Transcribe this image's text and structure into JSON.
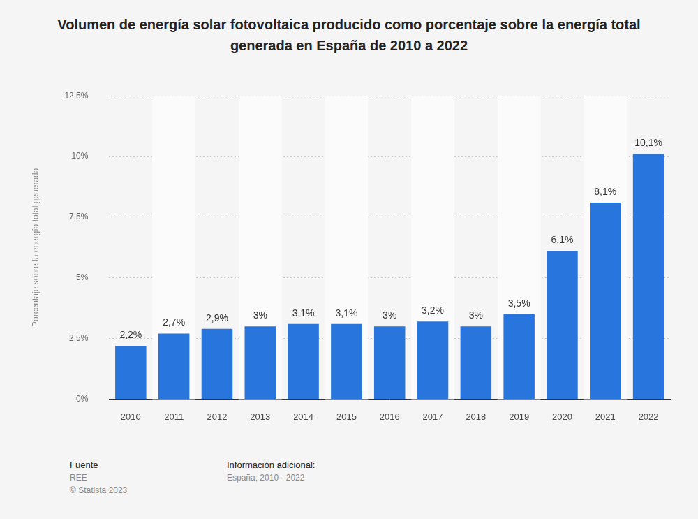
{
  "chart_data": {
    "type": "bar",
    "title": "Volumen de energía solar fotovoltaica producido como porcentaje sobre la energía total generada en España de 2010 a 2022",
    "y_label": "Porcentaje sobre la energía total generada",
    "categories": [
      "2010",
      "2011",
      "2012",
      "2013",
      "2014",
      "2015",
      "2016",
      "2017",
      "2018",
      "2019",
      "2020",
      "2021",
      "2022"
    ],
    "values": [
      2.2,
      2.7,
      2.9,
      3,
      3.1,
      3.1,
      3,
      3.2,
      3,
      3.5,
      6.1,
      8.1,
      10.1
    ],
    "value_labels": [
      "2,2%",
      "2,7%",
      "2,9%",
      "3%",
      "3,1%",
      "3,1%",
      "3%",
      "3,2%",
      "3%",
      "3,5%",
      "6,1%",
      "8,1%",
      "10,1%"
    ],
    "color": "#2876dd",
    "ylim": [
      0,
      12.5
    ],
    "yticks": [
      {
        "value": 0,
        "label": "0%"
      },
      {
        "value": 2.5,
        "label": "2,5%"
      },
      {
        "value": 5,
        "label": "5%"
      },
      {
        "value": 7.5,
        "label": "7,5%"
      },
      {
        "value": 10,
        "label": "10%"
      },
      {
        "value": 12.5,
        "label": "12,5%"
      }
    ],
    "grid": true,
    "data_labels": true
  },
  "footer": {
    "source_heading": "Fuente",
    "source": "REE",
    "copyright": "© Statista 2023",
    "info_heading": "Información adicional:",
    "info": "España; 2010 - 2022"
  }
}
